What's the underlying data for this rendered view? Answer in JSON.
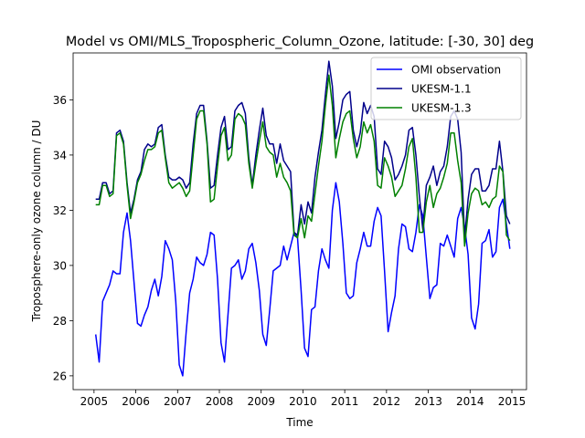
{
  "chart_data": {
    "type": "line",
    "title": "Model vs OMI/MLS_Tropospheric_Column_Ozone, latitude: [-30, 30] deg",
    "xlabel": "Time",
    "ylabel": "Troposphere-only ozone column / DU",
    "xlim": [
      2004.5,
      2015.35
    ],
    "ylim": [
      25.5,
      37.7
    ],
    "x_ticks": [
      2005,
      2006,
      2007,
      2008,
      2009,
      2010,
      2011,
      2012,
      2013,
      2014,
      2015
    ],
    "x_tick_labels": [
      "2005",
      "2006",
      "2007",
      "2008",
      "2009",
      "2010",
      "2011",
      "2012",
      "2013",
      "2014",
      "2015"
    ],
    "y_ticks": [
      26,
      28,
      30,
      32,
      34,
      36
    ],
    "y_tick_labels": [
      "26",
      "28",
      "30",
      "32",
      "34",
      "36"
    ],
    "grid": false,
    "legend_position": "top-right",
    "x_start": 2005.04,
    "x_step": 0.0833,
    "series": [
      {
        "name": "OMI observation",
        "color": "#0000ff",
        "values": [
          27.5,
          26.5,
          28.7,
          29.0,
          29.3,
          29.8,
          29.7,
          29.7,
          31.2,
          31.9,
          30.9,
          29.4,
          27.9,
          27.8,
          28.2,
          28.5,
          29.1,
          29.5,
          28.9,
          29.6,
          30.9,
          30.6,
          30.2,
          28.7,
          26.4,
          26.0,
          27.6,
          29.0,
          29.5,
          30.3,
          30.1,
          30.0,
          30.4,
          31.2,
          31.1,
          29.5,
          27.2,
          26.5,
          28.2,
          29.9,
          30.0,
          30.2,
          29.5,
          29.8,
          30.6,
          30.8,
          30.1,
          29.1,
          27.5,
          27.1,
          28.4,
          29.8,
          29.9,
          30.0,
          30.7,
          30.2,
          30.7,
          31.2,
          31.0,
          29.1,
          27.0,
          26.7,
          28.4,
          28.5,
          29.8,
          30.6,
          30.2,
          29.9,
          32.0,
          33.0,
          32.3,
          30.8,
          29.0,
          28.8,
          28.9,
          30.1,
          30.6,
          31.2,
          30.7,
          30.7,
          31.6,
          32.1,
          31.8,
          29.8,
          27.6,
          28.3,
          28.9,
          30.6,
          31.5,
          31.4,
          30.6,
          30.5,
          31.2,
          32.2,
          31.8,
          30.3,
          28.8,
          29.2,
          29.3,
          30.8,
          30.7,
          31.1,
          30.7,
          30.3,
          31.7,
          32.1,
          31.4,
          30.4,
          28.1,
          27.7,
          28.6,
          30.8,
          30.9,
          31.3,
          30.3,
          30.5,
          32.1,
          32.4,
          31.5,
          30.6
        ]
      },
      {
        "name": "UKESM-1.1",
        "color": "#00008b",
        "values": [
          32.4,
          32.4,
          33.0,
          33.0,
          32.6,
          32.7,
          34.8,
          34.9,
          34.5,
          33.0,
          31.9,
          32.4,
          33.1,
          33.4,
          34.2,
          34.4,
          34.3,
          34.4,
          35.0,
          35.1,
          34.0,
          33.2,
          33.1,
          33.1,
          33.2,
          33.1,
          32.8,
          33.0,
          34.4,
          35.5,
          35.8,
          35.8,
          34.5,
          32.8,
          32.9,
          34.0,
          35.0,
          35.4,
          34.2,
          34.3,
          35.6,
          35.8,
          35.9,
          35.5,
          33.9,
          32.9,
          34.0,
          34.9,
          35.7,
          34.7,
          34.4,
          34.4,
          33.7,
          34.4,
          33.8,
          33.6,
          33.4,
          31.2,
          31.1,
          32.2,
          31.5,
          32.3,
          31.9,
          33.2,
          34.1,
          34.9,
          36.2,
          37.4,
          36.5,
          34.6,
          35.2,
          36.0,
          36.2,
          36.3,
          34.9,
          34.3,
          34.8,
          35.9,
          35.5,
          35.8,
          35.4,
          33.5,
          33.3,
          34.5,
          34.3,
          33.9,
          33.1,
          33.3,
          33.6,
          34.0,
          34.9,
          35.0,
          34.0,
          32.5,
          31.3,
          32.9,
          33.2,
          33.6,
          32.9,
          33.4,
          33.6,
          34.3,
          35.4,
          35.6,
          35.3,
          34.1,
          31.0,
          32.4,
          33.3,
          33.5,
          33.5,
          32.7,
          32.7,
          32.9,
          33.5,
          33.5,
          34.5,
          33.4,
          31.8,
          31.5
        ]
      },
      {
        "name": "UKESM-1.3",
        "color": "#008000",
        "values": [
          32.2,
          32.2,
          32.9,
          32.9,
          32.5,
          32.6,
          34.7,
          34.8,
          34.4,
          32.9,
          31.7,
          32.3,
          33.0,
          33.3,
          33.8,
          34.2,
          34.2,
          34.3,
          34.8,
          34.9,
          33.9,
          33.0,
          32.8,
          32.9,
          33.0,
          32.8,
          32.5,
          32.7,
          34.0,
          35.3,
          35.6,
          35.6,
          34.4,
          32.3,
          32.4,
          33.6,
          34.7,
          35.0,
          33.8,
          34.0,
          35.3,
          35.5,
          35.4,
          35.1,
          33.7,
          32.8,
          33.7,
          34.5,
          35.2,
          34.3,
          34.1,
          34.0,
          33.2,
          33.7,
          33.2,
          33.0,
          32.7,
          31.1,
          31.0,
          31.7,
          31.0,
          31.8,
          31.6,
          32.6,
          33.6,
          34.5,
          35.8,
          36.9,
          35.8,
          33.9,
          34.6,
          35.2,
          35.5,
          35.6,
          34.6,
          33.9,
          34.3,
          35.2,
          34.8,
          35.1,
          34.5,
          32.9,
          32.8,
          33.9,
          33.6,
          33.2,
          32.5,
          32.7,
          32.9,
          33.5,
          34.3,
          34.6,
          33.2,
          31.2,
          31.2,
          32.3,
          32.9,
          32.1,
          32.6,
          32.8,
          33.2,
          33.7,
          34.8,
          34.8,
          33.8,
          33.0,
          30.7,
          31.9,
          32.6,
          32.8,
          32.7,
          32.2,
          32.3,
          32.1,
          32.4,
          32.5,
          33.6,
          33.4,
          31.1,
          30.9
        ]
      }
    ]
  }
}
